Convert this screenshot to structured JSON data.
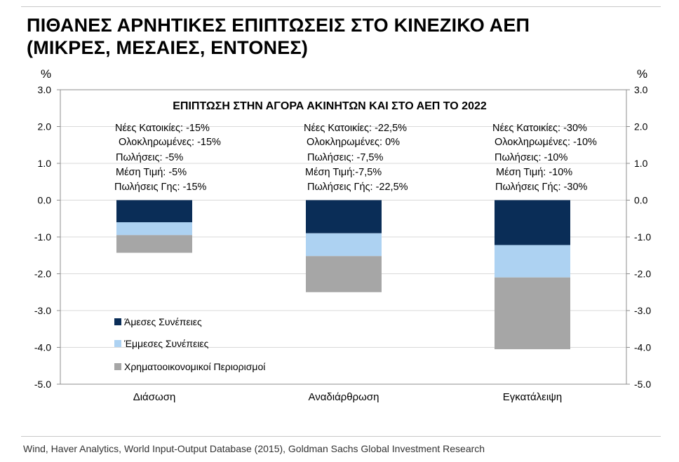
{
  "title_lines": [
    "ΠΙΘΑΝΕΣ ΑΡΝΗΤΙΚΕΣ ΕΠΙΠΤΩΣΕΙΣ ΣΤΟ ΚΙΝΕΖΙΚΟ ΑΕΠ",
    "(ΜΙΚΡΕΣ, ΜΕΣΑΙΕΣ, ΕΝΤΟΝΕΣ)"
  ],
  "source": "Wind, Haver Analytics, World Input-Output Database (2015), Goldman Sachs Global Investment Research",
  "colors": {
    "direct": "#0a2d57",
    "indirect": "#add2f2",
    "financial": "#a6a6a6",
    "gridline": "#d9d9d9",
    "axis": "#8c8c8c"
  },
  "chart_data": {
    "type": "bar",
    "stacked": true,
    "title": "ΕΠΙΠΤΩΣΗ ΣΤΗΝ ΑΓΟΡΑ ΑΚΙΝΗΤΩΝ ΚΑΙ ΣΤΟ ΑΕΠ ΤΟ 2022",
    "ylabel_left": "%",
    "ylabel_right": "%",
    "ylim": [
      -5.0,
      3.0
    ],
    "yticks": [
      "3.0",
      "2.0",
      "1.0",
      "0.0",
      "-1.0",
      "-2.0",
      "-3.0",
      "-4.0",
      "-5.0"
    ],
    "ytick_values": [
      3,
      2,
      1,
      0,
      -1,
      -2,
      -3,
      -4,
      -5
    ],
    "gridlines": true,
    "categories": [
      "Διάσωση",
      "Αναδιάρθρωση",
      "Εγκατάλειψη"
    ],
    "series": [
      {
        "name": "Άμεσες Συνέπειες",
        "color": "#0a2d57",
        "values": [
          -0.6,
          -0.9,
          -1.22
        ]
      },
      {
        "name": "Έμμεσες Συνέπειες",
        "color": "#add2f2",
        "values": [
          -0.35,
          -0.62,
          -0.88
        ]
      },
      {
        "name": "Χρηματοοικονομικοί Περιορισμοί",
        "color": "#a6a6a6",
        "values": [
          -0.48,
          -0.98,
          -1.95
        ]
      }
    ],
    "legend_position": "bottom-left",
    "annotations": [
      {
        "category": "Διάσωση",
        "lines": [
          "Νέες Κατοικίες: -15%",
          "Ολοκληρωμένες: -15%",
          "Πωλήσεις: -5%",
          "Μέση Τιμή: -5%",
          "Πωλήσεις Γης: -15%"
        ]
      },
      {
        "category": "Αναδιάρθρωση",
        "lines": [
          "Νέες Κατοικίες: -22,5%",
          "Ολοκληρωμένες:  0%",
          "Πωλήσεις: -7,5%",
          "Μέση Τιμή:-7,5%",
          "Πωλήσεις Γής: -22,5%"
        ]
      },
      {
        "category": "Εγκατάλειψη",
        "lines": [
          "Νέες Κατοικίες: -30%",
          "Ολοκληρωμένες: -10%",
          "Πωλήσεις: -10%",
          "Μέση Τιμή: -10%",
          "Πωλήσεις Γής: -30%"
        ]
      }
    ]
  }
}
